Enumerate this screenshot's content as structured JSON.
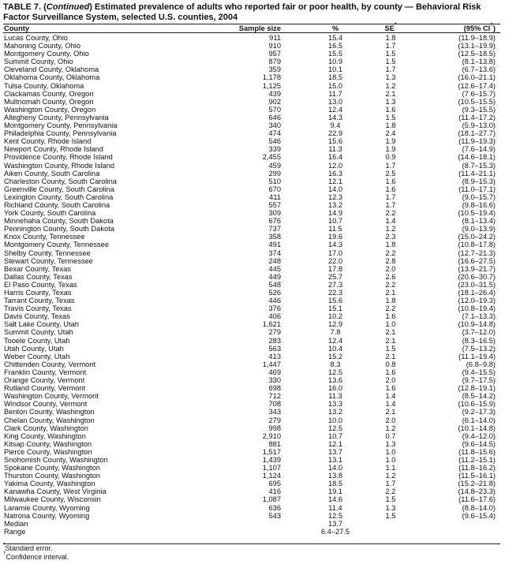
{
  "title": {
    "prefix": "TABLE 7. (",
    "continued": "Continued",
    "text": ") Estimated prevalence of adults who reported fair or poor health, by county — Behavioral Risk Factor Surveillance System, selected U.S. counties, 2004"
  },
  "columns": [
    "County",
    "Sample size",
    "%",
    "SE",
    "(95% CI",
    ")"
  ],
  "column_marks": {
    "se": "*",
    "ci": "†"
  },
  "rows": [
    [
      "Lucas County, Ohio",
      "911",
      "15.4",
      "1.8",
      "(11.9–18.9)"
    ],
    [
      "Mahoning County, Ohio",
      "910",
      "16.5",
      "1.7",
      "(13.1–19.9)"
    ],
    [
      "Montgomery County, Ohio",
      "957",
      "15.5",
      "1.5",
      "(12.5–18.5)"
    ],
    [
      "Summit County, Ohio",
      "879",
      "10.9",
      "1.5",
      "(8.1–13.8)"
    ],
    [
      "Cleveland County, Oklahoma",
      "359",
      "10.1",
      "1.7",
      "(6.7–13.6)"
    ],
    [
      "Oklahoma County, Oklahoma",
      "1,178",
      "18.5",
      "1.3",
      "(16.0–21.1)"
    ],
    [
      "Tulsa County, Oklahoma",
      "1,125",
      "15.0",
      "1.2",
      "(12.6–17.4)"
    ],
    [
      "Clackamas County, Oregon",
      "439",
      "11.7",
      "2.1",
      "(7.6–15.7)"
    ],
    [
      "Multnomah County, Oregon",
      "902",
      "13.0",
      "1.3",
      "(10.5–15.5)"
    ],
    [
      "Washington County, Oregon",
      "570",
      "12.4",
      "1.6",
      "(9.3–15.5)"
    ],
    [
      "Allegheny County, Pennsylvania",
      "646",
      "14.3",
      "1.5",
      "(11.4–17.2)"
    ],
    [
      "Montgomery County, Pennsylvania",
      "340",
      "9.4",
      "1.8",
      "(5.9–13.0)"
    ],
    [
      "Philadelphia County, Pennsylvania",
      "474",
      "22.9",
      "2.4",
      "(18.1–27.7)"
    ],
    [
      "Kent County, Rhode Island",
      "546",
      "15.6",
      "1.9",
      "(11.9–19.3)"
    ],
    [
      "Newport County, Rhode Island",
      "339",
      "11.3",
      "1.9",
      "(7.6–14.9)"
    ],
    [
      "Providence County, Rhode Island",
      "2,455",
      "16.4",
      "0.9",
      "(14.6–18.1)"
    ],
    [
      "Washington County, Rhode Island",
      "459",
      "12.0",
      "1.7",
      "(8.7–15.3)"
    ],
    [
      "Aiken County, South Carolina",
      "299",
      "16.3",
      "2.5",
      "(11.4–21.1)"
    ],
    [
      "Charleston County, South Carolina",
      "510",
      "12.1",
      "1.6",
      "(8.9–15.3)"
    ],
    [
      "Greenville County, South Carolina",
      "670",
      "14.0",
      "1.6",
      "(11.0–17.1)"
    ],
    [
      "Lexington County, South Carolina",
      "411",
      "12.3",
      "1.7",
      "(9.0–15.7)"
    ],
    [
      "Richland County, South Carolina",
      "557",
      "13.2",
      "1.7",
      "(9.8–16.6)"
    ],
    [
      "York County, South Carolina",
      "309",
      "14.9",
      "2.2",
      "(10.5–19.4)"
    ],
    [
      "Minnehaha County, South Dakota",
      "676",
      "10.7",
      "1.4",
      "(8.1–13.4)"
    ],
    [
      "Pennington County, South Dakota",
      "737",
      "11.5",
      "1.2",
      "(9.0–13.9)"
    ],
    [
      "Knox County, Tennessee",
      "358",
      "19.6",
      "2.3",
      "(15.0–24.2)"
    ],
    [
      "Montgomery County, Tennessee",
      "491",
      "14.3",
      "1.8",
      "(10.8–17.8)"
    ],
    [
      "Shelby County, Tennessee",
      "374",
      "17.0",
      "2.2",
      "(12.7–21.3)"
    ],
    [
      "Stewart County, Tennessee",
      "248",
      "22.0",
      "2.8",
      "(16.6–27.5)"
    ],
    [
      "Bexar County, Texas",
      "445",
      "17.8",
      "2.0",
      "(13.9–21.7)"
    ],
    [
      "Dallas County, Texas",
      "449",
      "25.7",
      "2.6",
      "(20.6–30.7)"
    ],
    [
      "El Paso County, Texas",
      "548",
      "27.3",
      "2.2",
      "(23.0–31.5)"
    ],
    [
      "Harris County, Texas",
      "526",
      "22.3",
      "2.1",
      "(18.1–26.4)"
    ],
    [
      "Tarrant County, Texas",
      "446",
      "15.6",
      "1.8",
      "(12.0–19.3)"
    ],
    [
      "Travis County, Texas",
      "376",
      "15.1",
      "2.2",
      "(10.8–19.4)"
    ],
    [
      "Davis County, Texas",
      "406",
      "10.2",
      "1.6",
      "(7.1–13.3)"
    ],
    [
      "Salt Lake County, Utah",
      "1,621",
      "12.9",
      "1.0",
      "(10.9–14.8)"
    ],
    [
      "Summit County, Utah",
      "279",
      "7.8",
      "2.1",
      "(3.7–12.0)"
    ],
    [
      "Tooele County, Utah",
      "283",
      "12.4",
      "2.1",
      "(8.3–16.5)"
    ],
    [
      "Utah County, Utah",
      "563",
      "10.4",
      "1.5",
      "(7.5–13.2)"
    ],
    [
      "Weber County, Utah",
      "413",
      "15.2",
      "2.1",
      "(11.1–19.4)"
    ],
    [
      "Chittenden County, Vermont",
      "1,447",
      "8.3",
      "0.8",
      "(6.8–9.8)"
    ],
    [
      "Franklin County, Vermont",
      "469",
      "12.5",
      "1.6",
      "(9.4–15.5)"
    ],
    [
      "Orange County, Vermont",
      "330",
      "13.6",
      "2.0",
      "(9.7–17.5)"
    ],
    [
      "Rutland County, Vermont",
      "698",
      "16.0",
      "1.6",
      "(12.8–19.1)"
    ],
    [
      "Washington County, Vermont",
      "712",
      "11.3",
      "1.4",
      "(8.5–14.2)"
    ],
    [
      "Windsor County, Vermont",
      "708",
      "13.3",
      "1.4",
      "(10.6–15.9)"
    ],
    [
      "Benton County, Washington",
      "343",
      "13.2",
      "2.1",
      "(9.2–17.3)"
    ],
    [
      "Chelan County, Washington",
      "279",
      "10.0",
      "2.0",
      "(6.1–14.0)"
    ],
    [
      "Clark County, Washington",
      "998",
      "12.5",
      "1.2",
      "(10.1–14.8)"
    ],
    [
      "King County, Washington",
      "2,910",
      "10.7",
      "0.7",
      "(9.4–12.0)"
    ],
    [
      "Kitsap County, Washington",
      "881",
      "12.1",
      "1.3",
      "(9.6–14.5)"
    ],
    [
      "Pierce County, Washington",
      "1,517",
      "13.7",
      "1.0",
      "(11.8–15.6)"
    ],
    [
      "Snohomish County, Washington",
      "1,439",
      "13.1",
      "1.0",
      "(11.2–15.1)"
    ],
    [
      "Spokane County, Washington",
      "1,107",
      "14.0",
      "1.1",
      "(11.8–16.2)"
    ],
    [
      "Thurston County, Washington",
      "1,124",
      "13.8",
      "1.2",
      "(11.5–16.1)"
    ],
    [
      "Yakima County, Washington",
      "695",
      "18.5",
      "1.7",
      "(15.2–21.8)"
    ],
    [
      "Kanawha County, West Virginia",
      "416",
      "19.1",
      "2.2",
      "(14.8–23.3)"
    ],
    [
      "Milwaukee County, Wisconsin",
      "1,087",
      "14.6",
      "1.5",
      "(11.6–17.6)"
    ],
    [
      "Laramie County, Wyoming",
      "636",
      "11.4",
      "1.3",
      "(8.8–14.0)"
    ],
    [
      "Natrona County, Wyoming",
      "543",
      "12.5",
      "1.5",
      "(9.6–15.4)"
    ],
    [
      "Median",
      "",
      "13.7",
      "",
      ""
    ],
    [
      "Range",
      "",
      "6.4–27.5",
      "",
      ""
    ]
  ],
  "footnotes": [
    {
      "mark": "*",
      "text": "Standard error."
    },
    {
      "mark": "†",
      "text": "Confidence interval."
    }
  ]
}
